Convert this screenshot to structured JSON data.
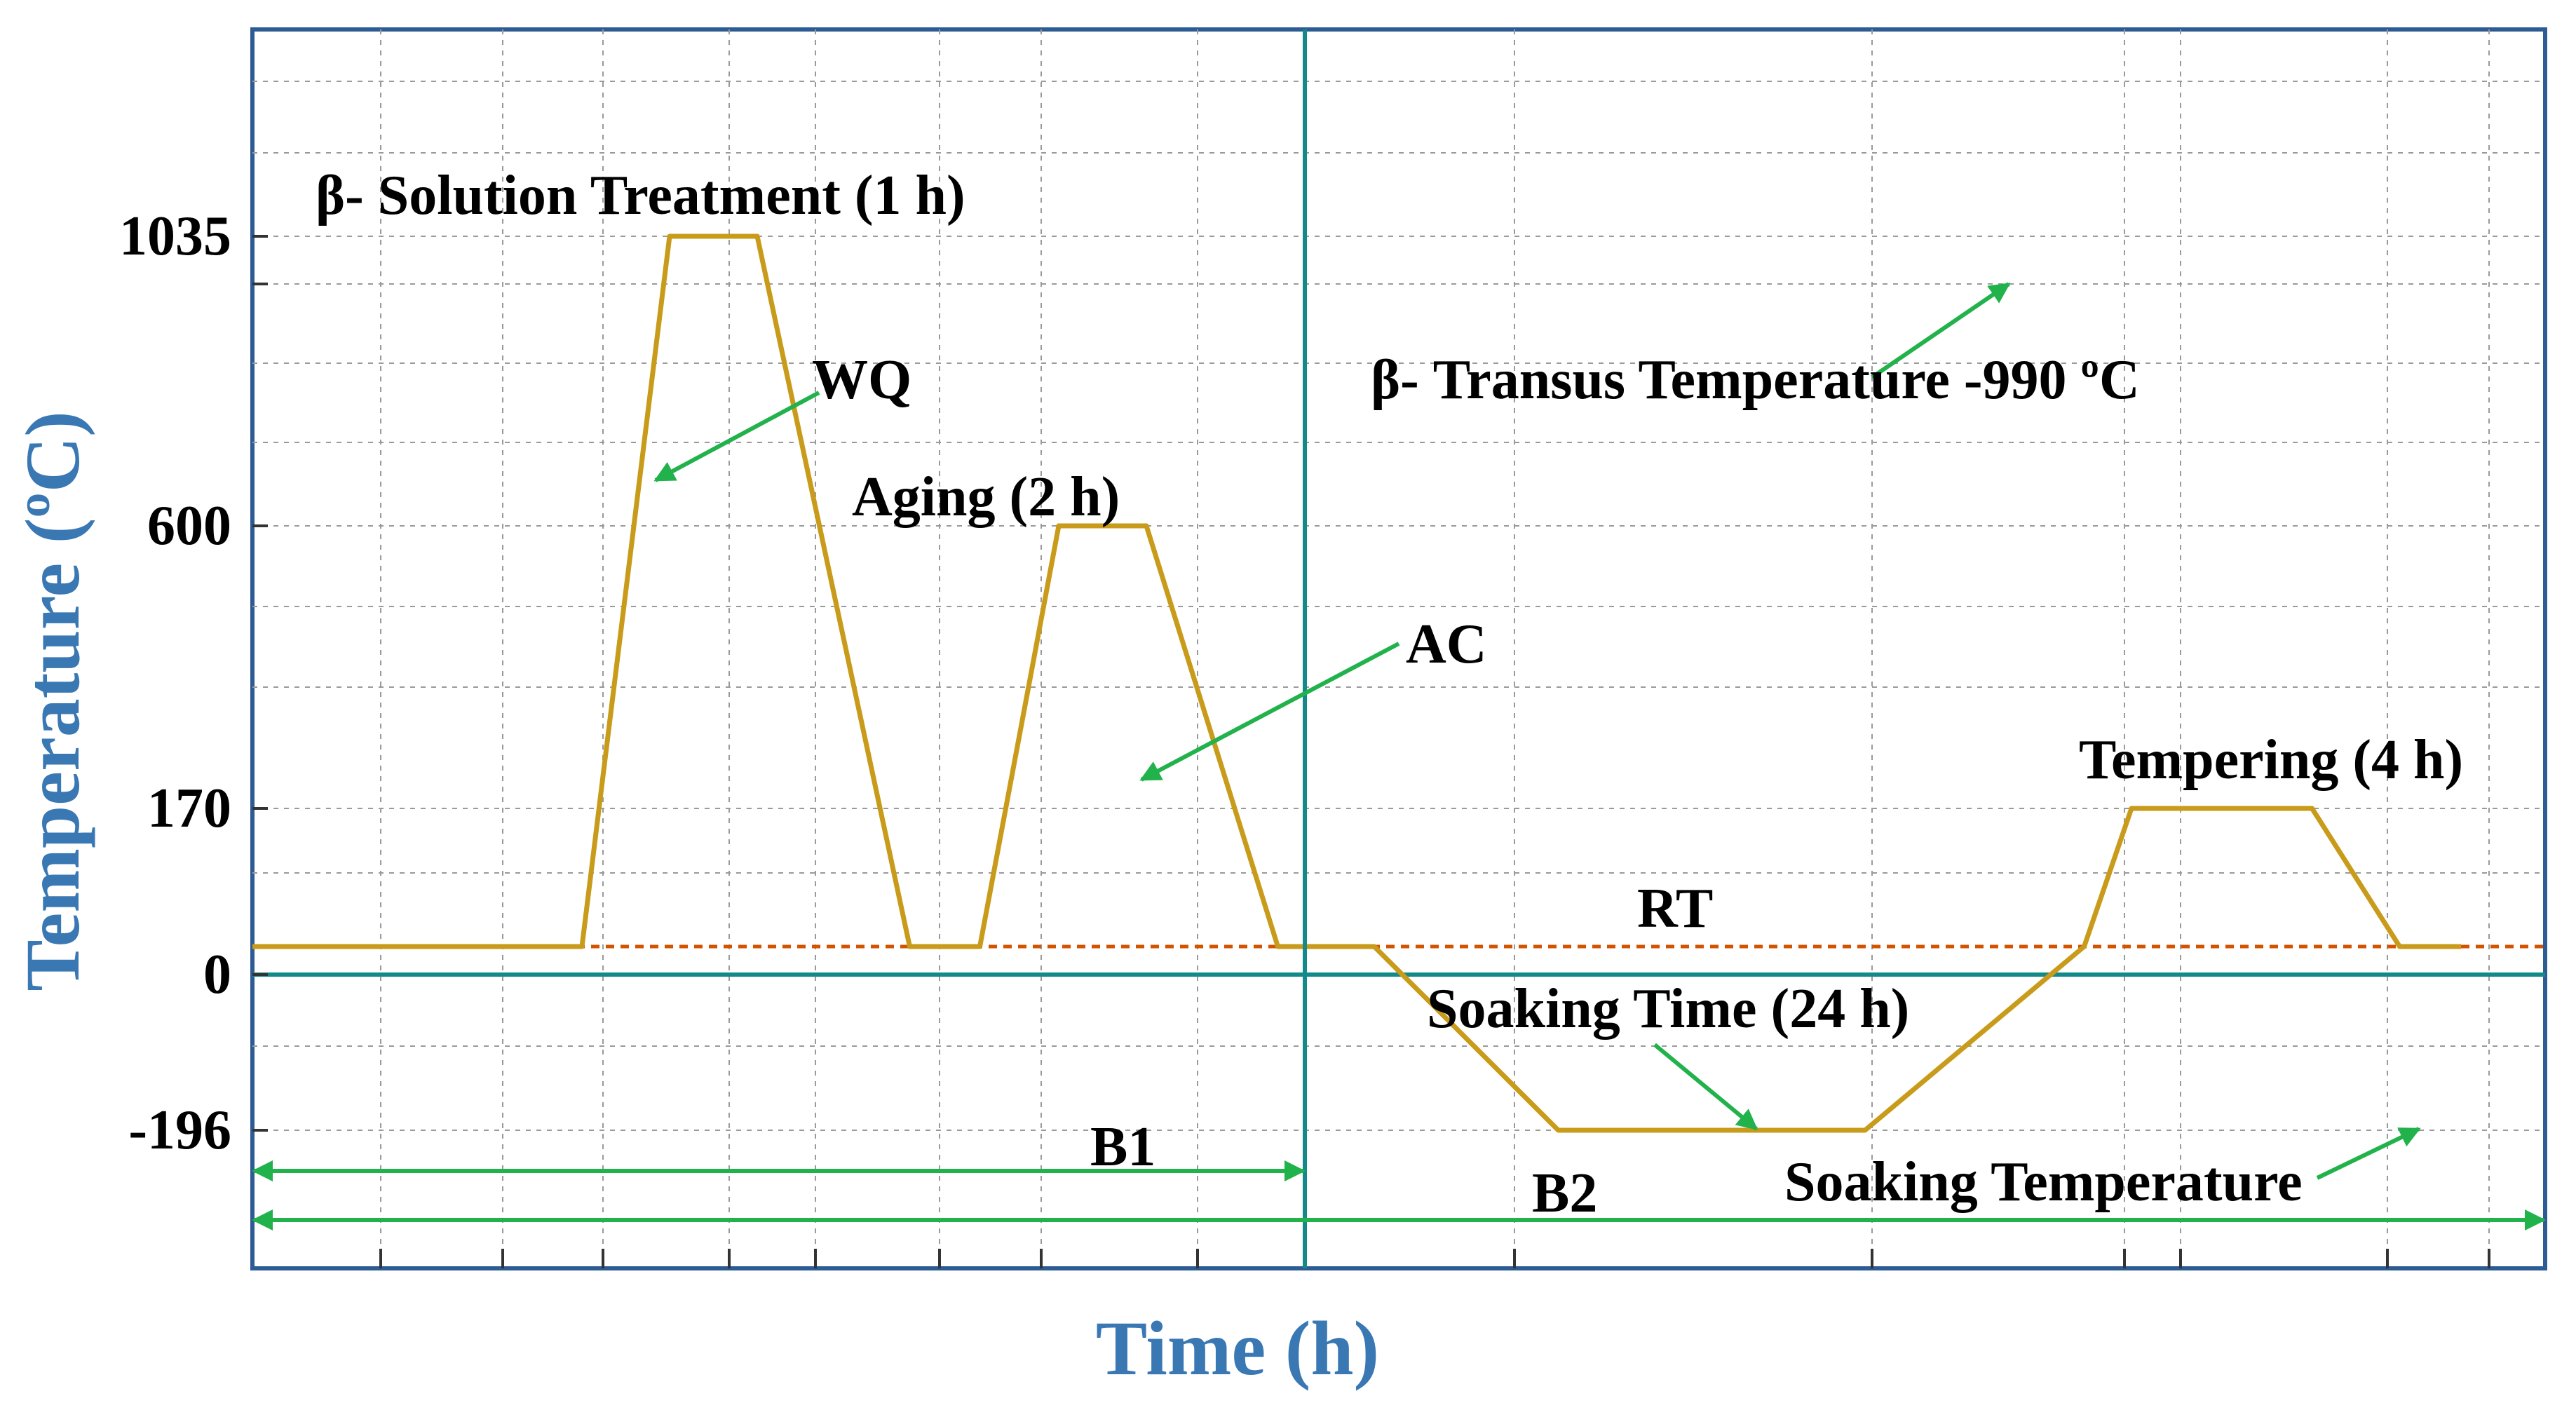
{
  "chart_data": {
    "type": "line",
    "title": "",
    "xlabel": "Time (h)",
    "ylabel": "Temperature (ºC)",
    "yticks": [
      1035,
      600,
      170,
      0,
      -196
    ],
    "grid": true,
    "x_scale_note": "schematic, unscaled time axis",
    "ylim_schematic": [
      -310,
      1340
    ],
    "reference_lines": [
      {
        "name": "RT",
        "label": "RT",
        "value": 40,
        "color": "#d35400",
        "style": "dashed"
      },
      {
        "name": "zero",
        "label": "",
        "value": 0,
        "color": "#138a8a",
        "style": "solid"
      }
    ],
    "series": [
      {
        "name": "Heat treatment profile",
        "color": "#c99b1a",
        "points": [
          [
            0.0,
            40
          ],
          [
            1.88,
            40
          ],
          [
            2.38,
            1035
          ],
          [
            2.88,
            1035
          ],
          [
            3.75,
            40
          ],
          [
            4.15,
            40
          ],
          [
            4.6,
            600
          ],
          [
            5.1,
            600
          ],
          [
            5.85,
            40
          ],
          [
            6.4,
            40
          ],
          [
            7.45,
            -196
          ],
          [
            9.2,
            -196
          ],
          [
            10.45,
            40
          ],
          [
            10.72,
            170
          ],
          [
            11.75,
            170
          ],
          [
            12.25,
            40
          ],
          [
            12.6,
            40
          ]
        ]
      }
    ],
    "annotations": {
      "solution": "β- Solution Treatment (1 h)",
      "wq": "WQ",
      "aging": "Aging (2 h)",
      "ac": "AC",
      "transus": "β- Transus Temperature -990 ºC",
      "tempering": "Tempering (4 h)",
      "rt": "RT",
      "soaking_time": "Soaking Time (24 h)",
      "soaking_temp": "Soaking Temperature",
      "b1": "B1",
      "b2": "B2"
    },
    "arrow_color": "#22b24c"
  }
}
